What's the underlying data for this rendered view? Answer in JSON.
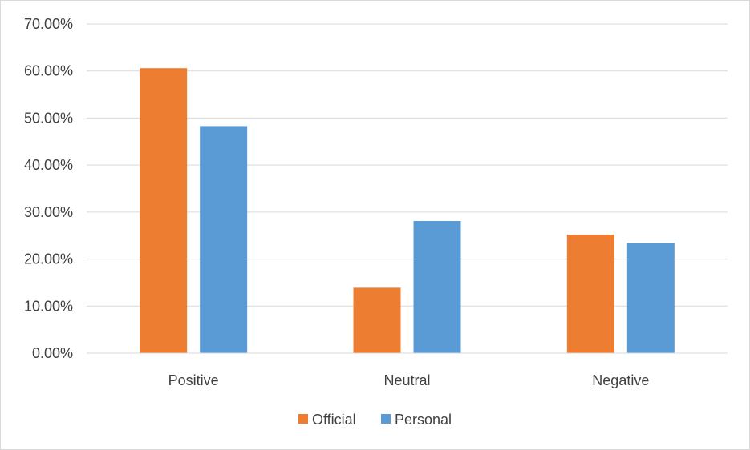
{
  "chart_data": {
    "type": "bar",
    "title": "",
    "xlabel": "",
    "ylabel": "",
    "categories": [
      "Positive",
      "Neutral",
      "Negative"
    ],
    "series": [
      {
        "name": "Official",
        "color": "#ED7D31",
        "values": [
          0.606,
          0.139,
          0.252
        ]
      },
      {
        "name": "Personal",
        "color": "#5B9BD5",
        "values": [
          0.483,
          0.281,
          0.234
        ]
      }
    ],
    "ylim": [
      0,
      0.7
    ],
    "y_ticks": [
      0,
      0.1,
      0.2,
      0.3,
      0.4,
      0.5,
      0.6,
      0.7
    ],
    "y_tick_labels": [
      "0.00%",
      "10.00%",
      "20.00%",
      "30.00%",
      "40.00%",
      "50.00%",
      "60.00%",
      "70.00%"
    ],
    "grid": true,
    "legend_position": "bottom"
  }
}
